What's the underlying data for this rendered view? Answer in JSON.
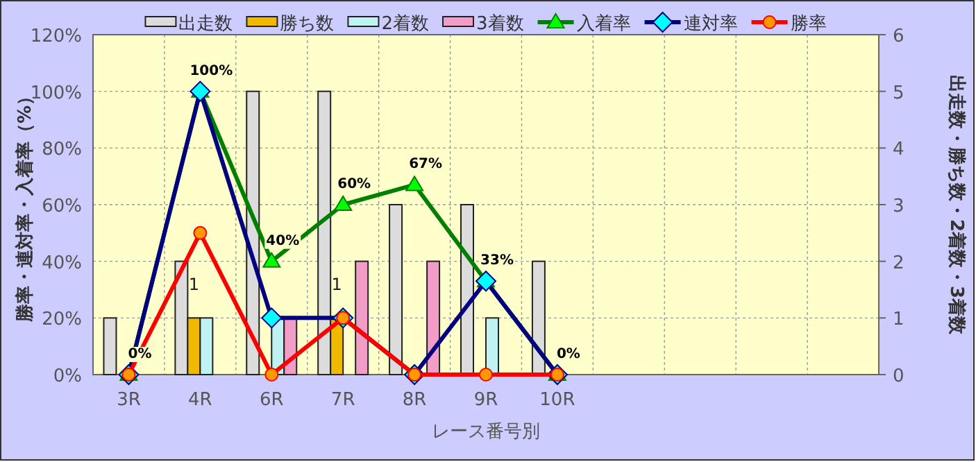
{
  "chart_data": {
    "type": "bar",
    "xlabel": "レース番号別",
    "ylabel": "勝率・連対率・入着率（%）",
    "y2label": "出走数・勝ち数・2着数・3着数",
    "categories": [
      "3R",
      "4R",
      "6R",
      "7R",
      "8R",
      "9R",
      "10R",
      null,
      null,
      null,
      null
    ],
    "ylim": [
      0,
      120
    ],
    "yticks": [
      {
        "value": 0,
        "label": "0%"
      },
      {
        "value": 20,
        "label": "20%"
      },
      {
        "value": 40,
        "label": "40%"
      },
      {
        "value": 60,
        "label": "60%"
      },
      {
        "value": 80,
        "label": "80%"
      },
      {
        "value": 100,
        "label": "100%"
      },
      {
        "value": 120,
        "label": "120%"
      }
    ],
    "y2lim": [
      0,
      6
    ],
    "y2ticks": [
      0,
      1,
      2,
      3,
      4,
      5,
      6
    ],
    "grid": true,
    "legend": "top",
    "series": [
      {
        "name": "出走数",
        "axis": "y2",
        "color": "#dcdcdc",
        "values": [
          1,
          2,
          5,
          5,
          3,
          3,
          2,
          null,
          null,
          null,
          null
        ]
      },
      {
        "name": "勝ち数",
        "axis": "y2",
        "color": "#f0b800",
        "values": [
          0,
          1,
          0,
          1,
          0,
          0,
          0,
          null,
          null,
          null,
          null
        ],
        "value_labels": [
          null,
          "1",
          null,
          "1",
          null,
          null,
          null,
          null,
          null,
          null,
          null
        ]
      },
      {
        "name": "2着数",
        "axis": "y2",
        "color": "#bff2f2",
        "values": [
          0,
          1,
          1,
          0,
          0,
          1,
          0,
          null,
          null,
          null,
          null
        ]
      },
      {
        "name": "3着数",
        "axis": "y2",
        "color": "#f29cc8",
        "values": [
          0,
          0,
          1,
          2,
          2,
          0,
          0,
          null,
          null,
          null,
          null
        ]
      },
      {
        "name": "入着率",
        "type": "line",
        "axis": "y",
        "color": "#008000",
        "marker": "triangle",
        "values": [
          0,
          100,
          40,
          60,
          67,
          33,
          0,
          null,
          null,
          null,
          null
        ],
        "value_labels": [
          "0%",
          "100%",
          "40%",
          "60%",
          "67%",
          "33%",
          "0%",
          null,
          null,
          null,
          null
        ]
      },
      {
        "name": "連対率",
        "type": "line",
        "axis": "y",
        "color": "#000080",
        "marker": "diamond",
        "values": [
          0,
          100,
          20,
          20,
          0,
          33,
          0,
          null,
          null,
          null,
          null
        ]
      },
      {
        "name": "勝率",
        "type": "line",
        "axis": "y",
        "color": "#ff0000",
        "marker": "circle",
        "values": [
          0,
          50,
          0,
          20,
          0,
          0,
          0,
          null,
          null,
          null,
          null
        ]
      }
    ]
  }
}
